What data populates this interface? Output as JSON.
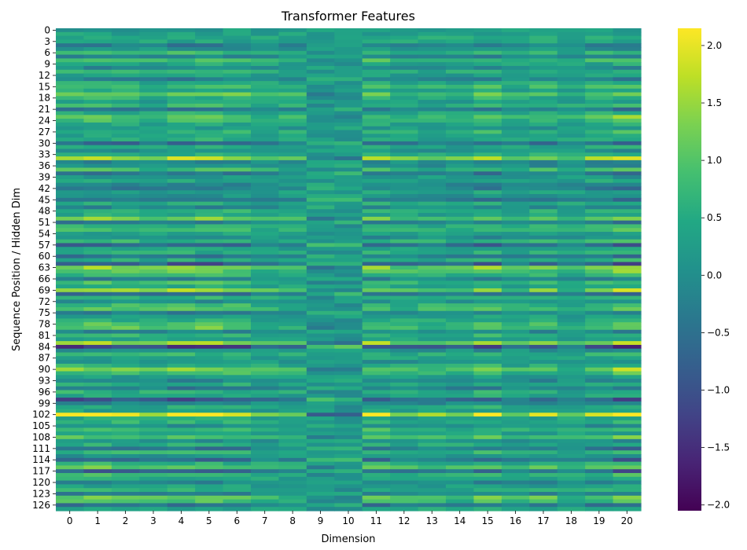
{
  "chart_data": {
    "type": "heatmap",
    "title": "Transformer Features",
    "xlabel": "Dimension",
    "ylabel": "Sequence Position / Hidden Dim",
    "n_rows": 128,
    "n_cols": 21,
    "x_tick_labels": [
      "0",
      "1",
      "2",
      "3",
      "4",
      "5",
      "6",
      "7",
      "8",
      "9",
      "10",
      "11",
      "12",
      "13",
      "14",
      "15",
      "16",
      "17",
      "18",
      "19",
      "20"
    ],
    "y_tick_labels": [
      "0",
      "3",
      "6",
      "9",
      "12",
      "15",
      "18",
      "21",
      "24",
      "27",
      "30",
      "33",
      "36",
      "39",
      "42",
      "45",
      "48",
      "51",
      "54",
      "57",
      "60",
      "63",
      "66",
      "69",
      "72",
      "75",
      "78",
      "81",
      "84",
      "87",
      "90",
      "93",
      "96",
      "99",
      "102",
      "105",
      "108",
      "111",
      "114",
      "117",
      "120",
      "123",
      "126"
    ],
    "y_tick_step": 3,
    "colormap": "viridis",
    "vmin": -2.05,
    "vmax": 2.15,
    "colorbar_ticks": [
      2.0,
      1.5,
      1.0,
      0.5,
      0.0,
      -0.5,
      -1.0,
      -1.5,
      -2.0
    ],
    "colorbar_tick_labels": [
      "2.0",
      "1.5",
      "1.0",
      "0.5",
      "0.0",
      "−0.5",
      "−1.0",
      "−1.5",
      "−2.0"
    ],
    "row_signature": [
      0.0,
      0.1,
      0.3,
      0.2,
      -0.6,
      -0.2,
      0.5,
      -0.4,
      0.7,
      0.2,
      -0.3,
      0.4,
      0.1,
      -0.5,
      0.3,
      0.6,
      0.2,
      1.0,
      0.4,
      0.1,
      0.5,
      -0.8,
      0.3,
      0.9,
      0.6,
      0.2,
      -0.1,
      0.5,
      0.1,
      0.3,
      -0.9,
      0.2,
      -0.2,
      0.4,
      1.5,
      -0.4,
      -0.3,
      0.6,
      -0.7,
      -0.1,
      0.2,
      -0.5,
      -0.6,
      0.1,
      -0.2,
      -0.8,
      0.3,
      -0.4,
      0.4,
      0.2,
      1.1,
      -0.6,
      0.4,
      0.7,
      0.1,
      -0.3,
      0.5,
      -1.0,
      0.2,
      0.3,
      -0.7,
      0.3,
      -1.2,
      1.2,
      0.9,
      0.5,
      -0.5,
      0.6,
      0.2,
      1.3,
      -0.9,
      0.4,
      -0.2,
      0.6,
      0.8,
      -0.6,
      0.1,
      0.3,
      0.7,
      0.9,
      -0.4,
      0.5,
      0.2,
      1.4,
      -1.6,
      -0.3,
      0.5,
      0.1,
      -0.2,
      0.4,
      1.1,
      0.6,
      0.0,
      -0.4,
      0.3,
      -0.6,
      0.4,
      0.2,
      -1.3,
      -0.5,
      0.3,
      0.1,
      2.1,
      0.2,
      0.4,
      -0.3,
      0.6,
      0.1,
      0.8,
      -0.2,
      0.3,
      -0.7,
      0.5,
      -0.1,
      -0.9,
      0.4,
      0.9,
      -1.0,
      0.6,
      0.2,
      -0.4,
      0.1,
      0.3,
      -0.5,
      1.0,
      0.7,
      -0.8,
      0.2
    ],
    "column_weight": [
      1.0,
      1.0,
      0.9,
      0.7,
      1.0,
      1.0,
      0.9,
      0.5,
      0.5,
      -0.4,
      -0.4,
      0.9,
      0.6,
      0.6,
      0.6,
      1.0,
      0.5,
      0.8,
      0.4,
      0.8,
      1.2
    ]
  },
  "colors": {
    "background": "#ffffff",
    "text": "#000000"
  }
}
